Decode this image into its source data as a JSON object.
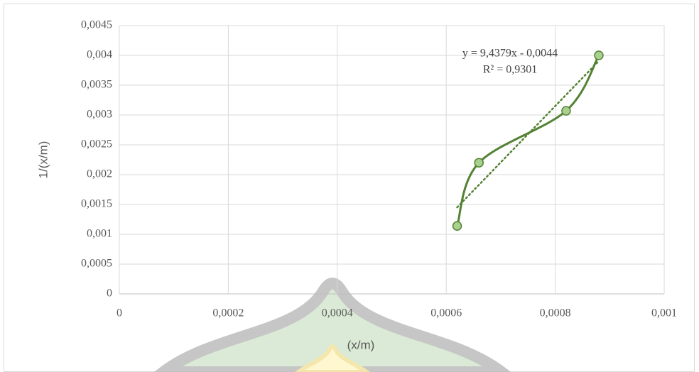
{
  "chart_data": {
    "type": "scatter",
    "x_label": "(x/m)",
    "y_label": "1/(x/m)",
    "xlim": [
      0,
      0.001
    ],
    "xticks": [
      0,
      {
        "value": 0.0002,
        "label": "0,0002"
      },
      {
        "value": 0.0004,
        "label": "0,0004"
      },
      {
        "value": 0.0006,
        "label": "0,0006"
      },
      {
        "value": 0.0008,
        "label": "0,0008"
      },
      {
        "value": 0.001,
        "label": "0,001"
      }
    ],
    "ylim": [
      0,
      0.0045
    ],
    "yticks": [
      0,
      {
        "value": 0.0005,
        "label": "0,0005"
      },
      {
        "value": 0.001,
        "label": "0,001"
      },
      {
        "value": 0.0015,
        "label": "0,0015"
      },
      {
        "value": 0.002,
        "label": "0,002"
      },
      {
        "value": 0.0025,
        "label": "0,0025"
      },
      {
        "value": 0.003,
        "label": "0,003"
      },
      {
        "value": 0.0035,
        "label": "0,0035"
      },
      {
        "value": 0.004,
        "label": "0,004"
      },
      {
        "value": 0.0045,
        "label": "0,0045"
      }
    ],
    "grid": true,
    "series": [
      {
        "color": "#548235",
        "marker_color": "#a9d18e",
        "x": [
          0.00062,
          0.00066,
          0.00082,
          0.00088
        ],
        "values": [
          0.00114,
          0.0022,
          0.00307,
          0.004
        ]
      }
    ],
    "trendline": {
      "slope": 9.4379,
      "intercept": -0.0044,
      "label": "y = 9,4379x - 0,0044",
      "r2_label": "R² = 0,9301"
    }
  }
}
